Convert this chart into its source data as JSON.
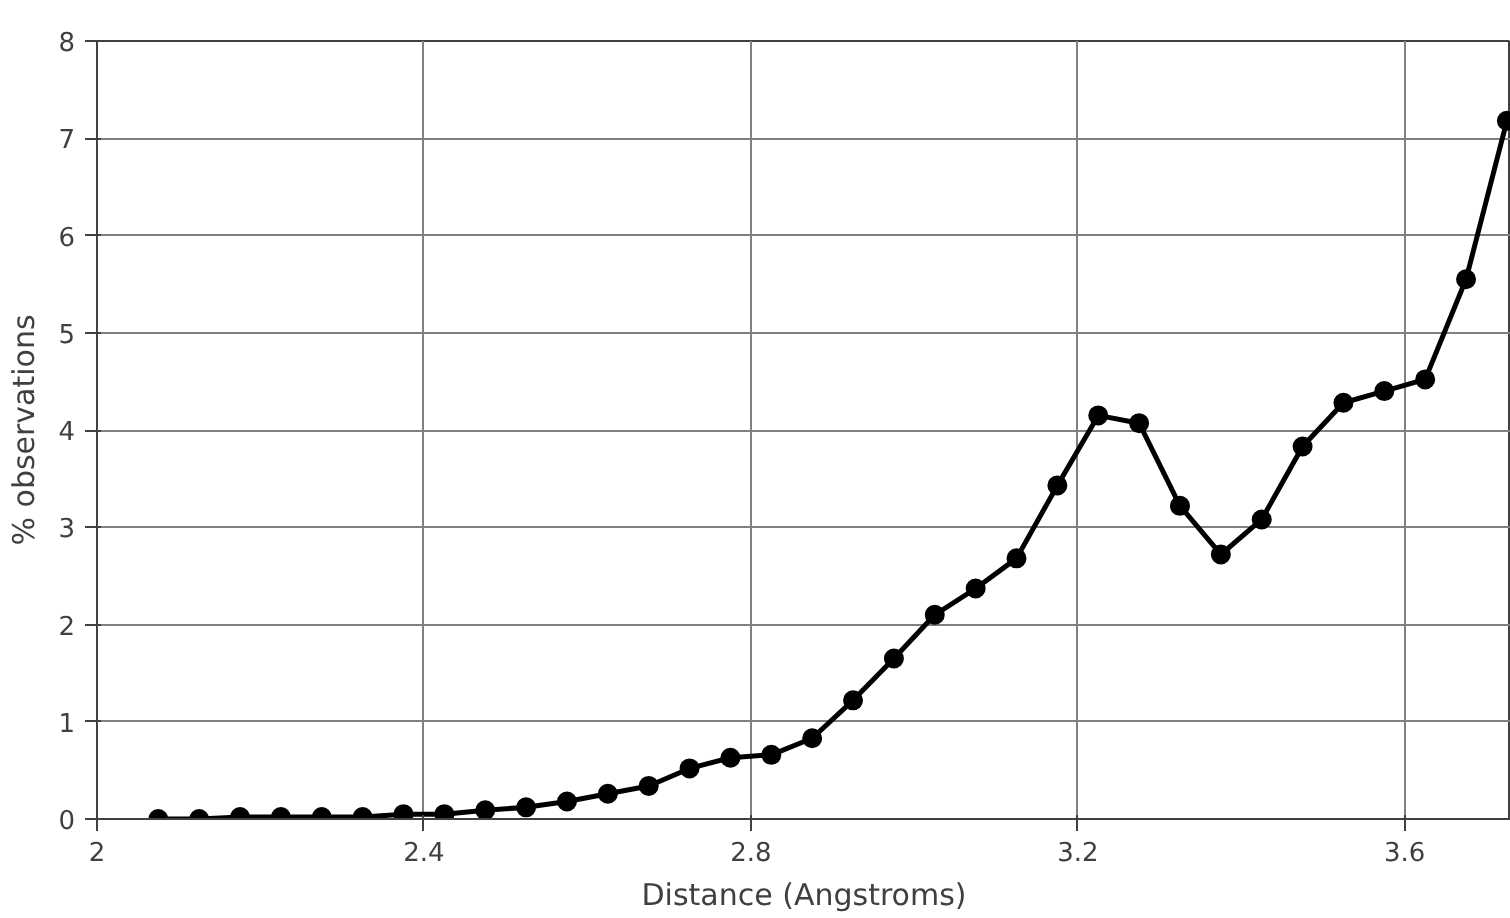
{
  "chart_data": {
    "type": "line",
    "xlabel": "Distance (Angstroms)",
    "ylabel": "% observations",
    "x": [
      2.075,
      2.125,
      2.175,
      2.225,
      2.275,
      2.325,
      2.375,
      2.425,
      2.475,
      2.525,
      2.575,
      2.625,
      2.675,
      2.725,
      2.775,
      2.825,
      2.875,
      2.925,
      2.975,
      3.025,
      3.075,
      3.125,
      3.175,
      3.225,
      3.275,
      3.325,
      3.375,
      3.425,
      3.475,
      3.525,
      3.575,
      3.625,
      3.675,
      3.725
    ],
    "series": [
      {
        "color": "#000000",
        "values": [
          0,
          0,
          0.02,
          0.02,
          0.02,
          0.02,
          0.05,
          0.05,
          0.09,
          0.12,
          0.18,
          0.26,
          0.34,
          0.52,
          0.63,
          0.66,
          0.83,
          1.22,
          1.65,
          2.1,
          2.37,
          2.68,
          3.43,
          4.15,
          4.07,
          3.22,
          2.72,
          3.08,
          3.83,
          4.28,
          4.4,
          4.52,
          5.55,
          7.18
        ]
      }
    ],
    "xlim": [
      2,
      3.73
    ],
    "ylim": [
      0,
      8
    ],
    "xticks": [
      {
        "value": 2,
        "label": "2"
      },
      2.4,
      2.8,
      3.2,
      3.6
    ],
    "yticks": [
      0,
      1,
      2,
      3,
      4,
      5,
      6,
      7,
      8
    ],
    "grid": true,
    "marker": "circle",
    "line_style": "solid"
  }
}
